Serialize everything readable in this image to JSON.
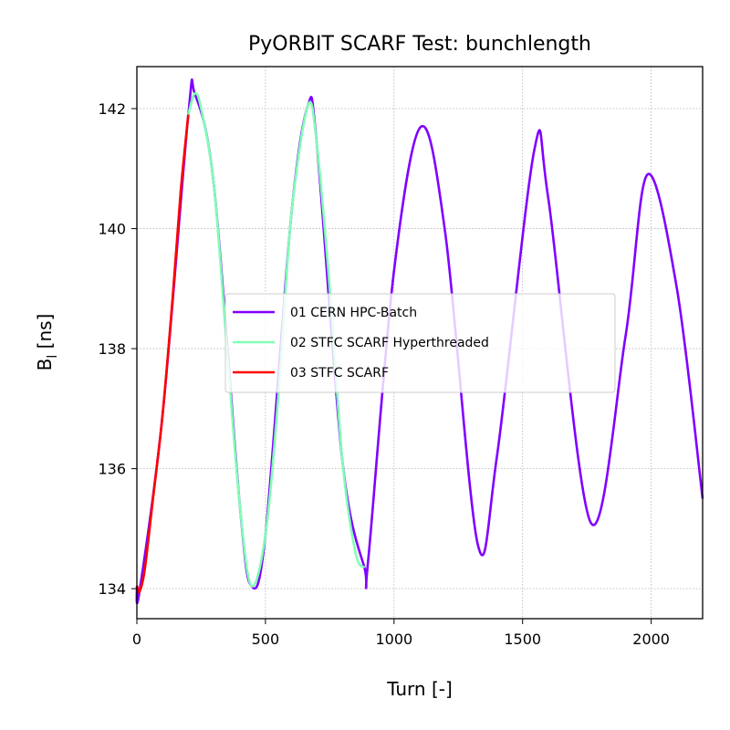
{
  "chart_data": {
    "type": "line",
    "title": "PyORBIT SCARF Test: bunchlength",
    "xlabel": "Turn [-]",
    "ylabel_main": "B",
    "ylabel_sub": "l",
    "ylabel_unit": " [ns]",
    "xlim": [
      0,
      2200
    ],
    "ylim": [
      133.5,
      142.7
    ],
    "xticks": [
      0,
      500,
      1000,
      1500,
      2000
    ],
    "xtick_labels": [
      "0",
      "500",
      "1000",
      "1500",
      "2000"
    ],
    "yticks": [
      134,
      136,
      138,
      140,
      142
    ],
    "ytick_labels": [
      "134",
      "136",
      "138",
      "140",
      "142"
    ],
    "grid": true,
    "legend_position": "center",
    "series": [
      {
        "name": "01 CERN HPC-Batch",
        "color": "#8000ff",
        "x": [
          0,
          10,
          100,
          200,
          225,
          300,
          400,
          445,
          500,
          600,
          665,
          700,
          800,
          885,
          900,
          1000,
          1105,
          1200,
          1325,
          1400,
          1545,
          1600,
          1765,
          1900,
          1985,
          2100,
          2200
        ],
        "y": [
          134.05,
          133.95,
          136.9,
          141.9,
          142.25,
          140.7,
          135.4,
          134.05,
          134.9,
          140.2,
          142.05,
          141.4,
          136.1,
          134.35,
          134.5,
          139.3,
          141.7,
          139.9,
          134.75,
          136.2,
          141.3,
          140.5,
          135.1,
          138.2,
          140.9,
          139.0,
          135.5
        ]
      },
      {
        "name": "02 STFC SCARF Hyperthreaded",
        "color": "#80ffb4",
        "x": [
          200,
          225,
          250,
          300,
          350,
          400,
          445,
          500,
          550,
          600,
          665,
          700,
          750,
          800,
          850,
          885
        ],
        "y": [
          141.9,
          142.25,
          142.0,
          140.7,
          138.0,
          135.4,
          134.05,
          134.9,
          137.2,
          140.2,
          142.05,
          141.4,
          139.0,
          136.1,
          134.6,
          134.35
        ]
      },
      {
        "name": "03 STFC SCARF",
        "color": "#ff0000",
        "x": [
          0,
          10,
          30,
          60,
          100,
          140,
          170,
          200
        ],
        "y": [
          134.05,
          133.95,
          134.3,
          135.4,
          136.9,
          138.9,
          140.6,
          141.9
        ]
      }
    ]
  }
}
